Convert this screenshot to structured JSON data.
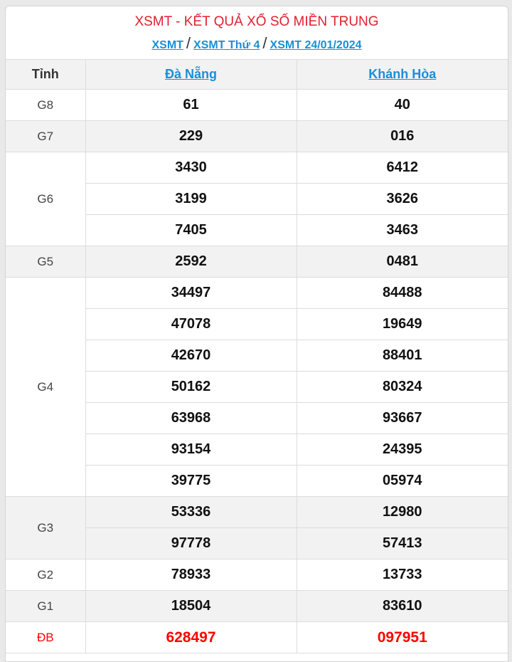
{
  "title": "XSMT - KẾT QUẢ XỔ SỐ MIỀN TRUNG",
  "breadcrumb": [
    {
      "label": "XSMT"
    },
    {
      "label": "XSMT Thứ 4"
    },
    {
      "label": "XSMT 24/01/2024"
    }
  ],
  "breadcrumb_sep": "/",
  "header": {
    "col0": "Tỉnh",
    "col1": "Đà Nẵng",
    "col2": "Khánh Hòa"
  },
  "prizes": [
    {
      "name": "G8",
      "a": [
        "61"
      ],
      "b": [
        "40"
      ],
      "shaded": false
    },
    {
      "name": "G7",
      "a": [
        "229"
      ],
      "b": [
        "016"
      ],
      "shaded": true
    },
    {
      "name": "G6",
      "a": [
        "3430",
        "3199",
        "7405"
      ],
      "b": [
        "6412",
        "3626",
        "3463"
      ],
      "shaded": false
    },
    {
      "name": "G5",
      "a": [
        "2592"
      ],
      "b": [
        "0481"
      ],
      "shaded": true
    },
    {
      "name": "G4",
      "a": [
        "34497",
        "47078",
        "42670",
        "50162",
        "63968",
        "93154",
        "39775"
      ],
      "b": [
        "84488",
        "19649",
        "88401",
        "80324",
        "93667",
        "24395",
        "05974"
      ],
      "shaded": false
    },
    {
      "name": "G3",
      "a": [
        "53336",
        "97778"
      ],
      "b": [
        "12980",
        "57413"
      ],
      "shaded": true
    },
    {
      "name": "G2",
      "a": [
        "78933"
      ],
      "b": [
        "13733"
      ],
      "shaded": false
    },
    {
      "name": "G1",
      "a": [
        "18504"
      ],
      "b": [
        "83610"
      ],
      "shaded": true
    },
    {
      "name": "ĐB",
      "a": [
        "628497"
      ],
      "b": [
        "097951"
      ],
      "shaded": false,
      "special": true
    }
  ],
  "colors": {
    "title": "#e0202f",
    "link": "#1a8fd6",
    "special": "#ff0000",
    "shade": "#f2f2f2"
  }
}
